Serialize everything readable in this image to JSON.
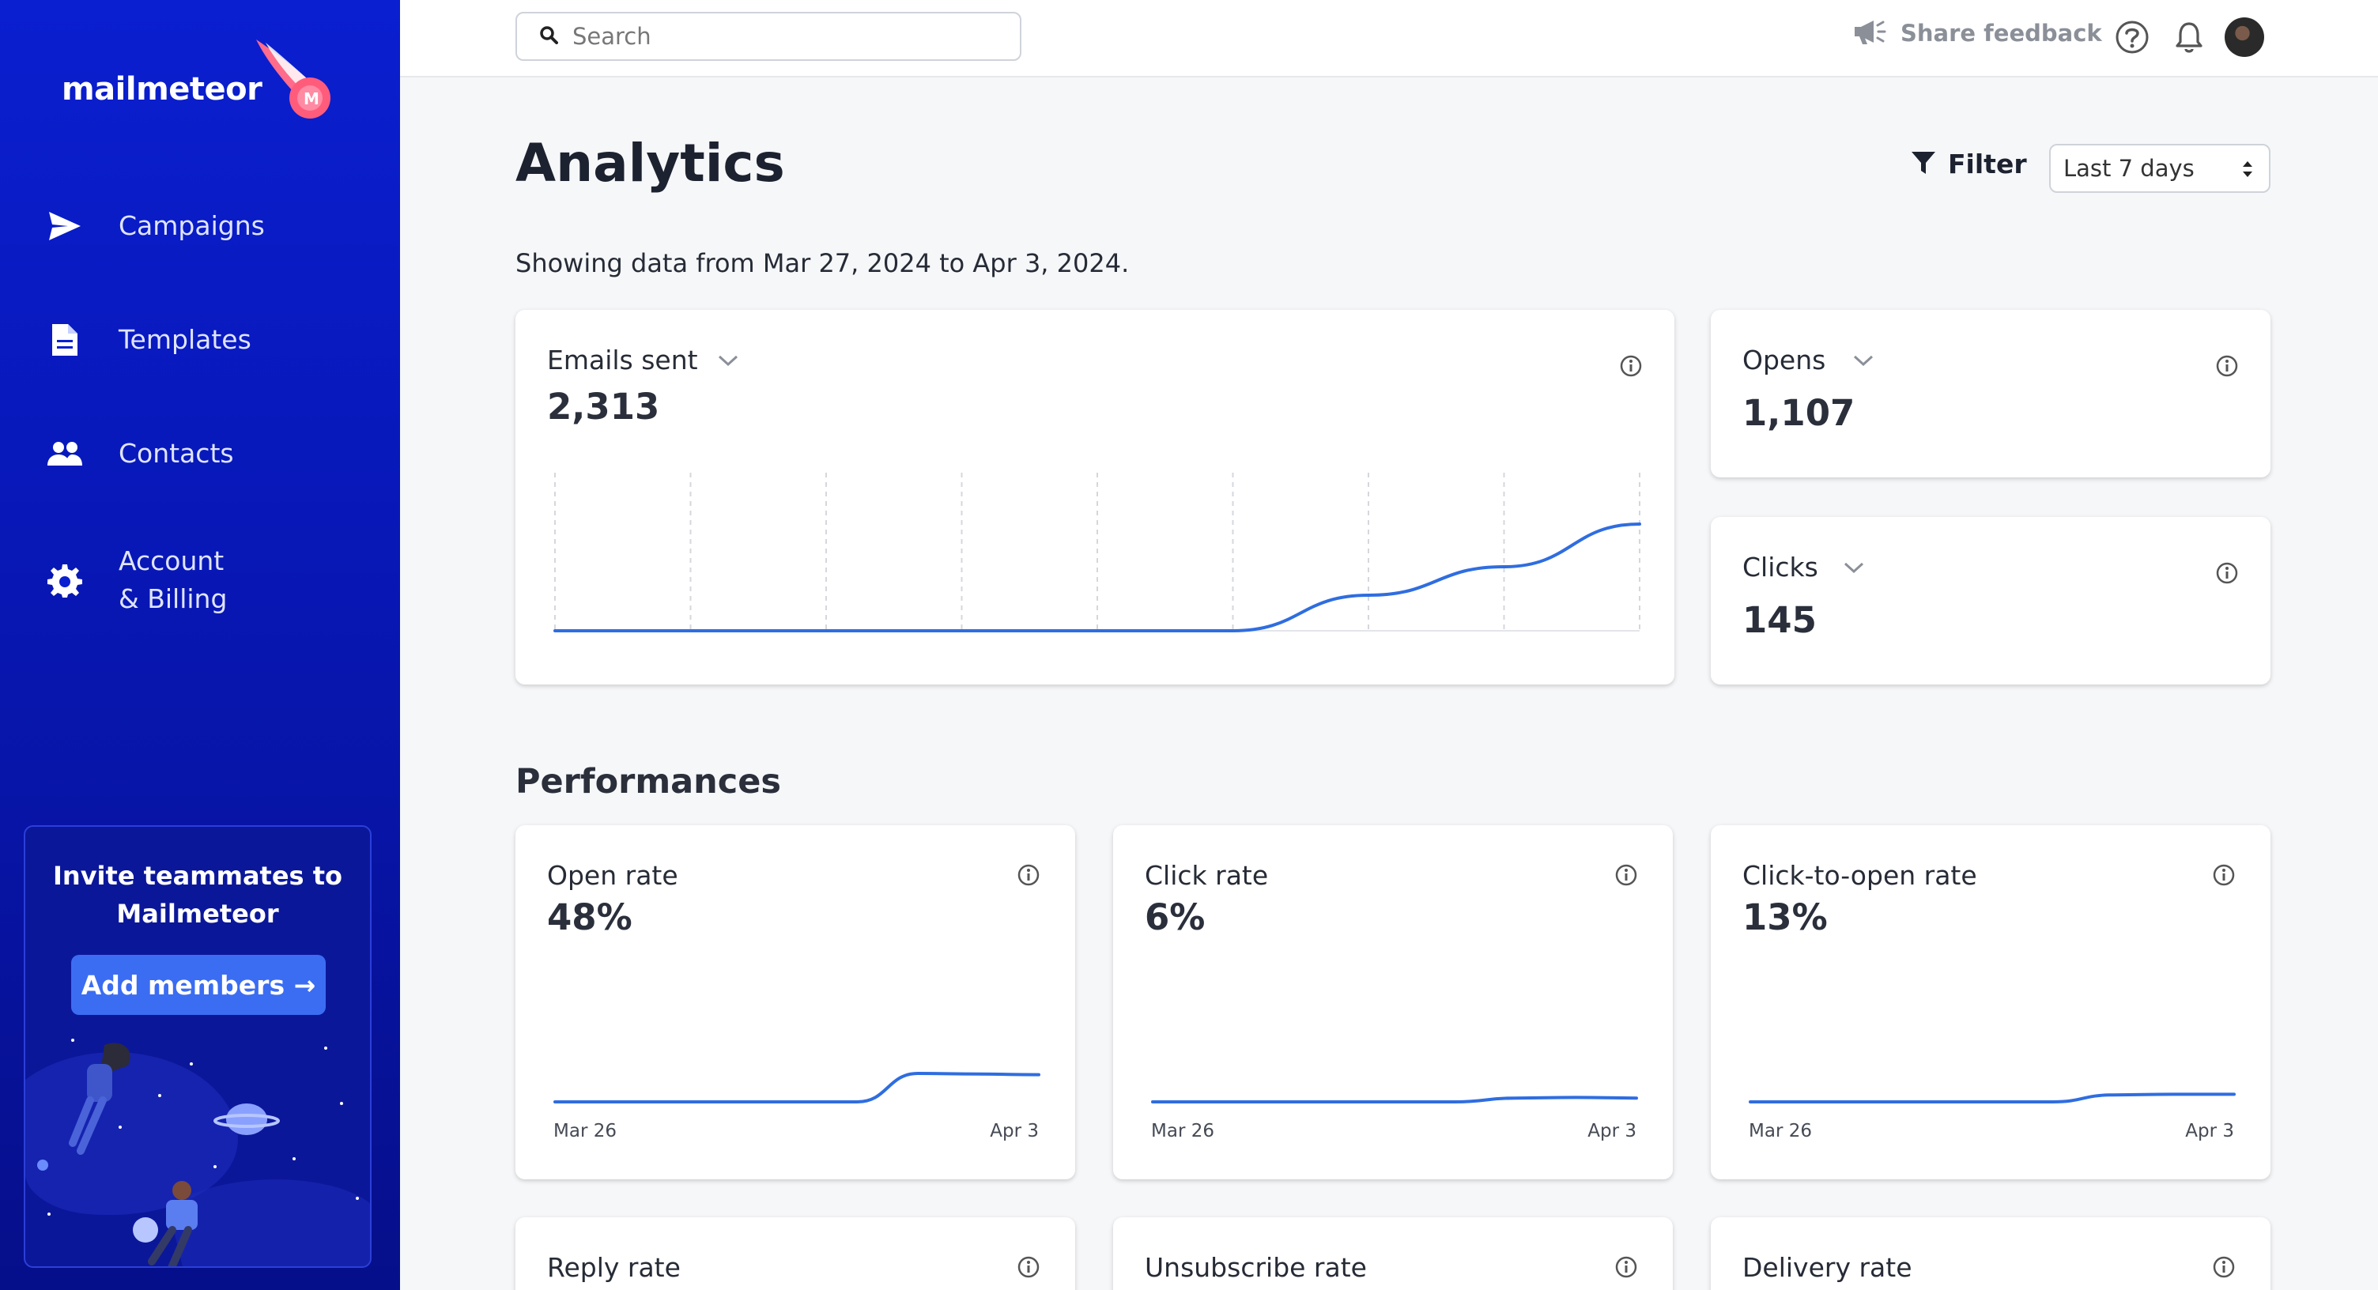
{
  "sidebar": {
    "logo": "mailmeteor",
    "nav": [
      {
        "label": "Campaigns",
        "icon": "send-icon"
      },
      {
        "label": "Templates",
        "icon": "document-icon"
      },
      {
        "label": "Contacts",
        "icon": "people-icon"
      },
      {
        "label_line1": "Account",
        "label_line2": "& Billing",
        "icon": "gear-icon"
      }
    ],
    "invite": {
      "title_line1": "Invite teammates to",
      "title_line2": "Mailmeteor",
      "button": "Add members →"
    }
  },
  "topbar": {
    "search_placeholder": "Search",
    "share_feedback": "Share feedback"
  },
  "main": {
    "title": "Analytics",
    "filter_label": "Filter",
    "range": "Last 7 days",
    "date_info": "Showing data from Mar 27, 2024 to Apr 3, 2024.",
    "section_title": "Performances"
  },
  "stats": {
    "emails_sent": {
      "label": "Emails sent",
      "value": "2,313"
    },
    "opens": {
      "label": "Opens",
      "value": "1,107"
    },
    "clicks": {
      "label": "Clicks",
      "value": "145"
    }
  },
  "performance": [
    {
      "label": "Open rate",
      "value": "48%",
      "x_start": "Mar 26",
      "x_end": "Apr 3"
    },
    {
      "label": "Click rate",
      "value": "6%",
      "x_start": "Mar 26",
      "x_end": "Apr 3"
    },
    {
      "label": "Click-to-open rate",
      "value": "13%",
      "x_start": "Mar 26",
      "x_end": "Apr 3"
    },
    {
      "label": "Reply rate"
    },
    {
      "label": "Unsubscribe rate"
    },
    {
      "label": "Delivery rate"
    }
  ],
  "chart_data": [
    {
      "type": "line",
      "name": "Emails sent trend",
      "x": [
        0,
        1,
        2,
        3,
        4,
        5,
        6,
        7,
        8
      ],
      "values": [
        0,
        0,
        0,
        0,
        0,
        0,
        25,
        45,
        75
      ],
      "ylim": [
        0,
        100
      ]
    },
    {
      "type": "line",
      "name": "Open rate trend",
      "x": [
        0,
        1,
        2,
        3,
        4,
        5,
        6,
        7,
        8
      ],
      "values": [
        0,
        0,
        0,
        0,
        0,
        0,
        45,
        44,
        43
      ],
      "ylim": [
        0,
        100
      ]
    },
    {
      "type": "line",
      "name": "Click rate trend",
      "x": [
        0,
        1,
        2,
        3,
        4,
        5,
        6,
        7,
        8
      ],
      "values": [
        0,
        0,
        0,
        0,
        0,
        0,
        6,
        7,
        6
      ],
      "ylim": [
        0,
        100
      ]
    },
    {
      "type": "line",
      "name": "Click-to-open rate trend",
      "x": [
        0,
        1,
        2,
        3,
        4,
        5,
        6,
        7,
        8
      ],
      "values": [
        0,
        0,
        0,
        0,
        0,
        0,
        11,
        12,
        12
      ],
      "ylim": [
        0,
        100
      ]
    }
  ],
  "colors": {
    "sidebar": "#0a1fd0",
    "accent": "#3b6df2",
    "line": "#2f6de0"
  }
}
